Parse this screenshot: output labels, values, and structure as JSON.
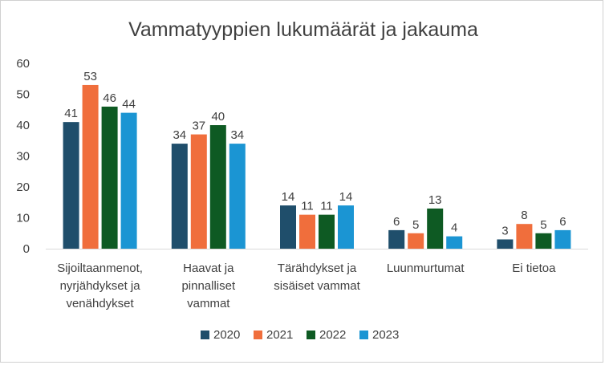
{
  "chart_data": {
    "type": "bar",
    "title": "Vammatyyppien lukumäärät ja jakauma",
    "xlabel": "",
    "ylabel": "",
    "ylim": [
      0,
      60
    ],
    "yticks": [
      0,
      10,
      20,
      30,
      40,
      50,
      60
    ],
    "grid": false,
    "legend_position": "bottom",
    "categories": [
      [
        "Sijoiltaanmenot,",
        "nyrjähdykset ja",
        "venähdykset"
      ],
      [
        "Haavat ja",
        "pinnalliset",
        "vammat"
      ],
      [
        "Tärähdykset ja",
        "sisäiset vammat"
      ],
      [
        "Luunmurtumat"
      ],
      [
        "Ei tietoa"
      ]
    ],
    "series": [
      {
        "name": "2020",
        "color": "#1F4E6B",
        "values": [
          41,
          34,
          14,
          6,
          3
        ]
      },
      {
        "name": "2021",
        "color": "#F06E3C",
        "values": [
          53,
          37,
          11,
          5,
          8
        ]
      },
      {
        "name": "2022",
        "color": "#0E5A23",
        "values": [
          46,
          40,
          11,
          13,
          5
        ]
      },
      {
        "name": "2023",
        "color": "#1B95D3",
        "values": [
          44,
          34,
          14,
          4,
          6
        ]
      }
    ]
  }
}
